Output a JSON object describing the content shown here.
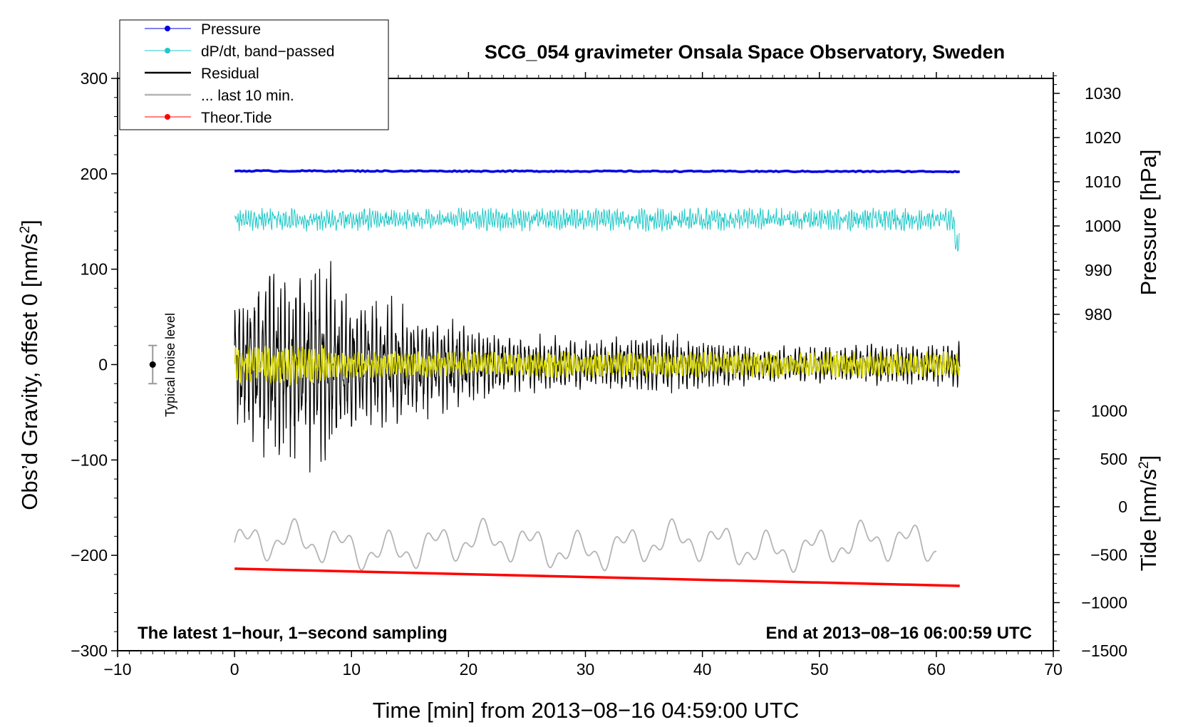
{
  "chart_data": {
    "type": "line",
    "title": "SCG_054 gravimeter Onsala Space Observatory, Sweden",
    "xlabel": "Time [min] from 2013−08−16 04:59:00 UTC",
    "ylabel_left": "Obs’d Gravity, offset 0 [nm/s",
    "ylabel_left_sup": "2",
    "ylabel_left_end": "]",
    "ylabel_right_top": "Pressure [hPa]",
    "ylabel_right_bottom": "Tide [nm/s",
    "ylabel_right_bottom_sup": "2",
    "ylabel_right_bottom_end": "]",
    "xlim": [
      -10,
      70
    ],
    "ylim": [
      -300,
      300
    ],
    "x_ticks": [
      -10,
      0,
      10,
      20,
      30,
      40,
      50,
      60,
      70
    ],
    "x_tick_labels": [
      "−10",
      "0",
      "10",
      "20",
      "30",
      "40",
      "50",
      "60",
      "70"
    ],
    "y_ticks": [
      -300,
      -200,
      -100,
      0,
      100,
      200,
      300
    ],
    "y_tick_labels": [
      "−300",
      "−200",
      "−100",
      "0",
      "100",
      "200",
      "300"
    ],
    "pressure_ticks": [
      980,
      990,
      1000,
      1010,
      1020,
      1030
    ],
    "pressure_tick_labels": [
      "980",
      "990",
      "1000",
      "1010",
      "1020",
      "1030"
    ],
    "tide_ticks": [
      -1500,
      -1000,
      -500,
      0,
      500,
      1000
    ],
    "tide_tick_labels": [
      "−1500",
      "−1000",
      "−500",
      "0",
      "500",
      "1000"
    ],
    "annotation_left": "The latest 1−hour, 1−second sampling",
    "annotation_right": "End at 2013−08−16 06:00:59 UTC",
    "noise_label": "Typical noise level",
    "noise_bar": {
      "x": -7,
      "center": 0,
      "half_range": 20
    },
    "legend_position": "top-left",
    "legend": [
      {
        "label": "Pressure",
        "color": "#0000e0",
        "marker": true
      },
      {
        "label": "dP/dt, band−passed",
        "color": "#20c8c8",
        "marker": true
      },
      {
        "label": "Residual",
        "color": "#000000",
        "marker": false
      },
      {
        "label": "... last 10 min.",
        "color": "#b4b4b4",
        "marker": false
      },
      {
        "label": "Theor.Tide",
        "color": "#ff0000",
        "marker": true
      }
    ],
    "series": [
      {
        "name": "Pressure",
        "color": "#0000e0",
        "x_range": [
          0,
          62
        ],
        "y_approx": 203
      },
      {
        "name": "dP/dt, band−passed",
        "color": "#20c8c8",
        "x_range": [
          0,
          62
        ],
        "y_center": 152,
        "y_spread": 18
      },
      {
        "name": "Residual",
        "color": "#000000",
        "x_range": [
          0,
          62
        ],
        "y_center": 0,
        "envelope": [
          [
            0,
            80
          ],
          [
            3,
            115
          ],
          [
            5,
            100
          ],
          [
            7,
            110
          ],
          [
            10,
            80
          ],
          [
            15,
            60
          ],
          [
            20,
            45
          ],
          [
            25,
            30
          ],
          [
            30,
            25
          ],
          [
            35,
            35
          ],
          [
            40,
            30
          ],
          [
            45,
            20
          ],
          [
            50,
            20
          ],
          [
            55,
            22
          ],
          [
            62,
            25
          ]
        ]
      },
      {
        "name": "Residual filtered",
        "color": "#d4d400",
        "x_range": [
          0,
          62
        ],
        "y_center": 0,
        "y_spread": 12
      },
      {
        "name": "... last 10 min.",
        "color": "#b4b4b4",
        "x_range": [
          0,
          60
        ],
        "y_center": -190,
        "y_spread": 25
      },
      {
        "name": "Theor.Tide",
        "color": "#ff0000",
        "x": [
          0,
          62
        ],
        "y": [
          -214,
          -232
        ]
      }
    ],
    "grid": false
  }
}
